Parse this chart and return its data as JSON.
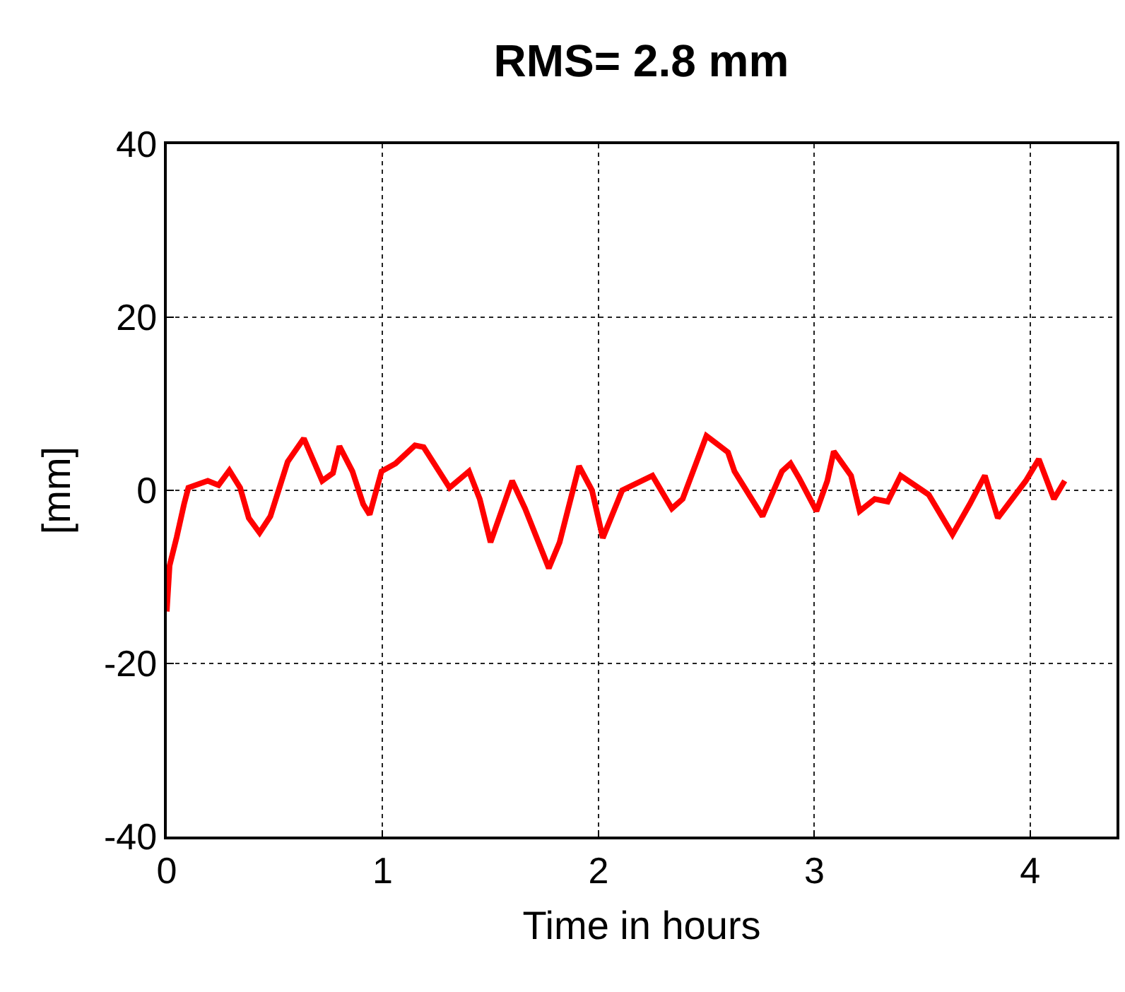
{
  "chart_data": {
    "type": "line",
    "title": "RMS= 2.8 mm",
    "xlabel": "Time in hours",
    "ylabel": "[mm]",
    "x": [
      0,
      0.013,
      0.046,
      0.08,
      0.1,
      0.19,
      0.24,
      0.29,
      0.34,
      0.38,
      0.43,
      0.48,
      0.56,
      0.635,
      0.72,
      0.77,
      0.8,
      0.86,
      0.91,
      0.94,
      0.995,
      1.06,
      1.15,
      1.19,
      1.31,
      1.4,
      1.45,
      1.5,
      1.6,
      1.66,
      1.77,
      1.82,
      1.91,
      1.97,
      2.02,
      2.11,
      2.25,
      2.34,
      2.39,
      2.5,
      2.6,
      2.63,
      2.76,
      2.85,
      2.89,
      2.93,
      3.01,
      3.06,
      3.09,
      3.17,
      3.21,
      3.28,
      3.34,
      3.4,
      3.53,
      3.64,
      3.72,
      3.79,
      3.85,
      3.98,
      4.04,
      4.11,
      4.16
    ],
    "series": [
      {
        "color": "#ff0000",
        "values": [
          -14,
          -8.7,
          -5.4,
          -1.6,
          0.3,
          1.1,
          0.6,
          2.3,
          0.3,
          -3.2,
          -4.9,
          -3.0,
          3.3,
          6.0,
          1.1,
          2.0,
          5.1,
          2.2,
          -1.6,
          -2.8,
          2.2,
          3.1,
          5.2,
          5.0,
          0.3,
          2.2,
          -1.0,
          -6.0,
          1.1,
          -2.1,
          -9.0,
          -6.0,
          2.8,
          0.0,
          -5.5,
          0.0,
          1.7,
          -2.1,
          -1.0,
          6.3,
          4.4,
          2.2,
          -3.0,
          2.2,
          3.1,
          1.4,
          -2.4,
          1.1,
          4.5,
          1.7,
          -2.4,
          -1.0,
          -1.3,
          1.7,
          -0.5,
          -5.1,
          -1.6,
          1.7,
          -3.2,
          1.1,
          3.6,
          -1.0,
          1.1
        ]
      }
    ],
    "xlim": [
      0,
      4.4
    ],
    "xticks": [
      0,
      1,
      2,
      3,
      4
    ],
    "ylim": [
      -40,
      40
    ],
    "yticks": [
      -40,
      -20,
      0,
      20,
      40
    ],
    "grid": true,
    "line_style": "solid"
  }
}
